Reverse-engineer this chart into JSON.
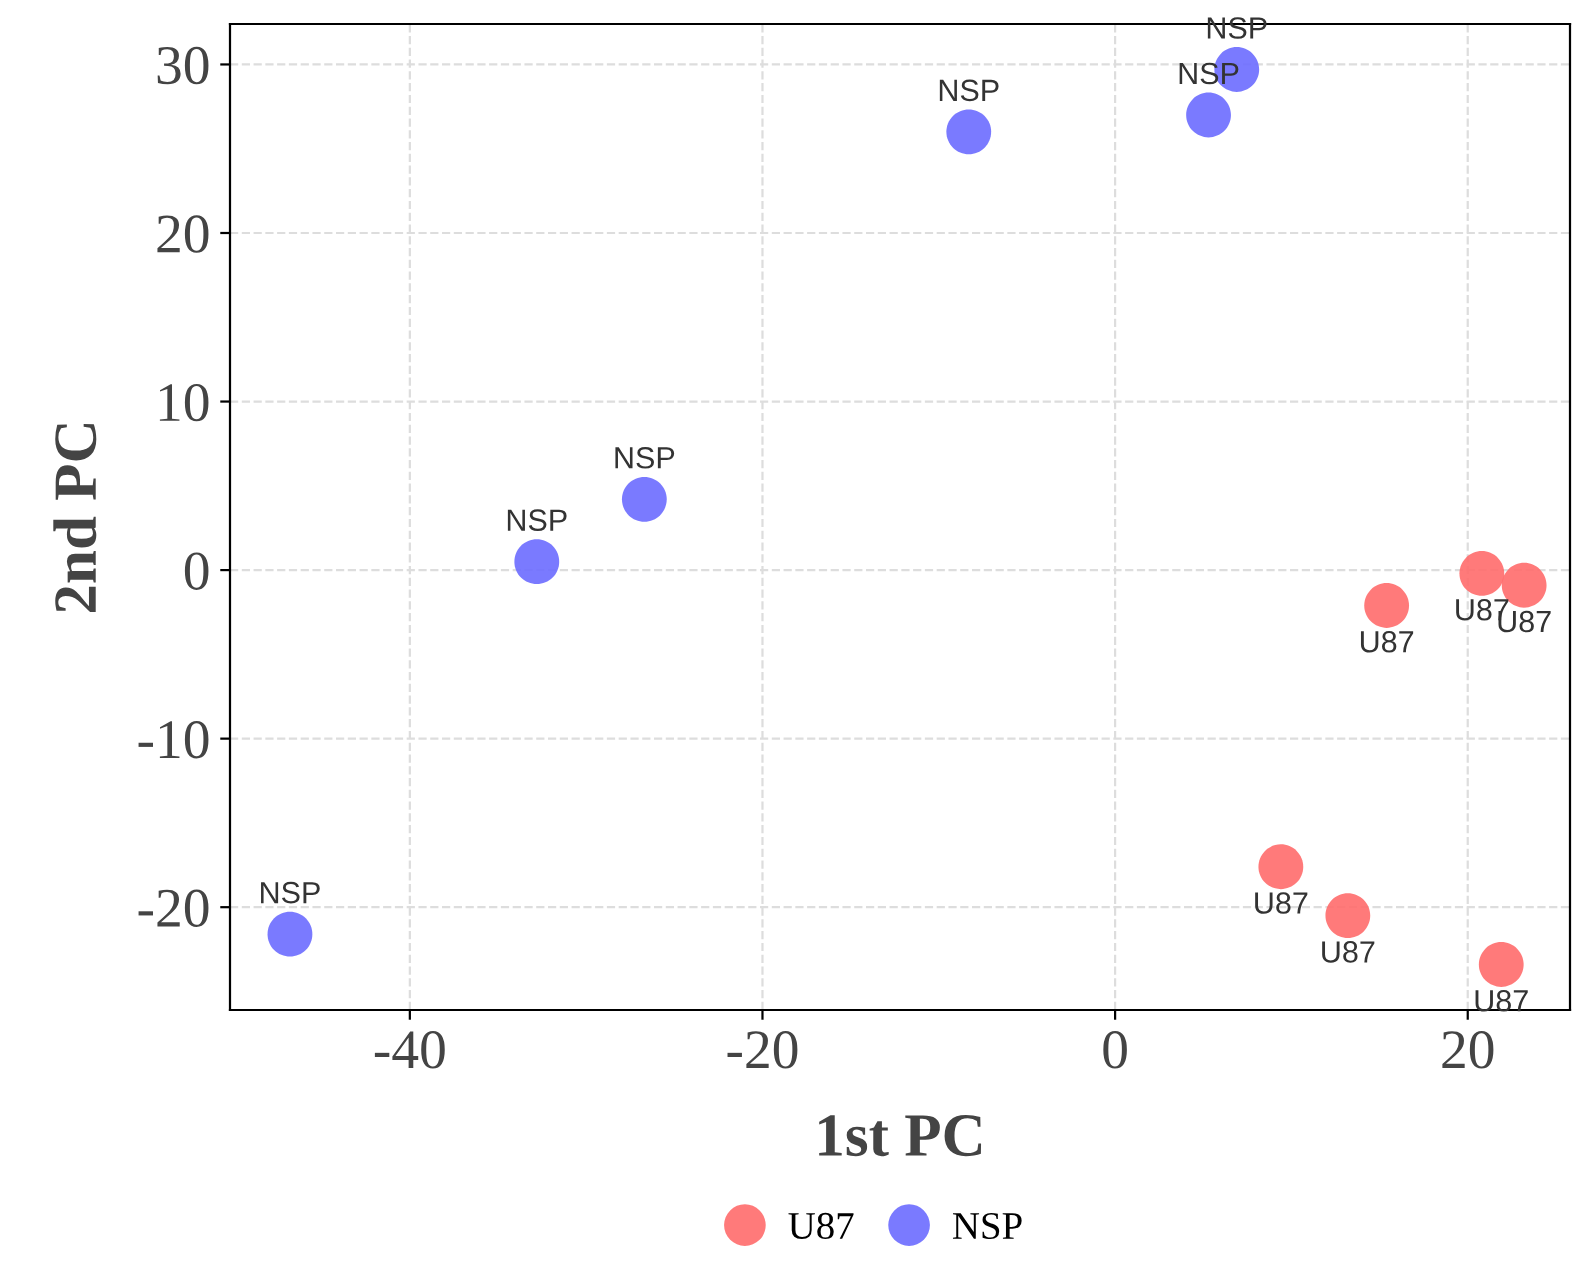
{
  "chart_data": {
    "type": "scatter",
    "xlabel": "1st PC",
    "ylabel": "2nd PC",
    "xlim": [
      -50.2,
      25.8
    ],
    "ylim": [
      -26.1,
      32.4
    ],
    "xticks": [
      -40,
      -20,
      0,
      20
    ],
    "yticks": [
      -20,
      -10,
      0,
      10,
      20,
      30
    ],
    "grid": true,
    "legend": "bottom",
    "marker": "circle",
    "series": [
      {
        "name": "U87",
        "color": "#ff6b6b",
        "x": [
          15.4,
          20.8,
          23.2,
          9.4,
          13.2,
          21.9
        ],
        "values": [
          -2.1,
          -0.2,
          -0.9,
          -17.6,
          -20.5,
          -23.4
        ],
        "value_labels": [
          "U87",
          "U87",
          "U87",
          "U87",
          "U87",
          "U87"
        ]
      },
      {
        "name": "NSP",
        "color": "#6b6bff",
        "x": [
          5.3,
          6.9,
          -8.3,
          -26.7,
          -32.8,
          -46.8
        ],
        "values": [
          27.0,
          29.7,
          26.0,
          4.2,
          0.5,
          -21.6
        ],
        "value_labels": [
          "NSP",
          "NSP",
          "NSP",
          "NSP",
          "NSP",
          "NSP"
        ]
      }
    ]
  }
}
